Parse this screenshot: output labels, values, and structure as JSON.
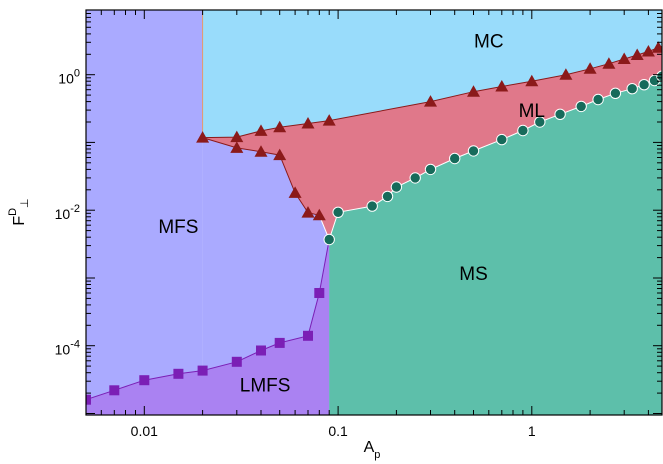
{
  "chart_data": {
    "type": "scatter",
    "title": "",
    "xlabel": {
      "main": "A",
      "sub": "p"
    },
    "ylabel": {
      "main": "F",
      "sup": "D",
      "sub": "⊥"
    },
    "x_scale": "log",
    "y_scale": "log",
    "xlim": [
      0.005,
      4.7
    ],
    "ylim": [
      9.5e-06,
      9.0
    ],
    "grid": false,
    "x_ticks": [
      {
        "value": 0.01,
        "label": "0.01"
      },
      {
        "value": 0.1,
        "label": "0.1"
      },
      {
        "value": 1,
        "label": "1"
      }
    ],
    "y_ticks": [
      {
        "value": 1,
        "base": "10",
        "exp": "0"
      },
      {
        "value": 0.01,
        "base": "10",
        "exp": "-2"
      },
      {
        "value": 0.0001,
        "base": "10",
        "exp": "-4"
      }
    ],
    "regions": [
      {
        "label": "MC",
        "color": "#99dcfb",
        "label_at": {
          "x": 0.6,
          "y": 3.0
        }
      },
      {
        "label": "ML",
        "color": "#e0788a",
        "label_at": {
          "x": 1.0,
          "y": 0.28
        }
      },
      {
        "label": "MFS",
        "color": "#aaaaff",
        "label_at": {
          "x": 0.015,
          "y": 0.0055
        }
      },
      {
        "label": "MS",
        "color": "#5dbfaa",
        "label_at": {
          "x": 0.5,
          "y": 0.0011
        }
      },
      {
        "label": "LMFS",
        "color": "#aa82f2",
        "label_at": {
          "x": 0.042,
          "y": 2.5e-05
        }
      }
    ],
    "series": [
      {
        "marker": "triangle",
        "color": "#8b1a1a",
        "points": [
          {
            "x": 0.02,
            "y": 0.118
          },
          {
            "x": 0.03,
            "y": 0.12
          },
          {
            "x": 0.04,
            "y": 0.148
          },
          {
            "x": 0.05,
            "y": 0.167
          },
          {
            "x": 0.07,
            "y": 0.19
          },
          {
            "x": 0.09,
            "y": 0.21
          },
          {
            "x": 0.3,
            "y": 0.4
          },
          {
            "x": 0.5,
            "y": 0.56
          },
          {
            "x": 0.7,
            "y": 0.67
          },
          {
            "x": 1.0,
            "y": 0.8
          },
          {
            "x": 1.5,
            "y": 1.0
          },
          {
            "x": 2.0,
            "y": 1.22
          },
          {
            "x": 2.5,
            "y": 1.45
          },
          {
            "x": 3.0,
            "y": 1.7
          },
          {
            "x": 3.5,
            "y": 1.95
          },
          {
            "x": 4.0,
            "y": 2.2
          },
          {
            "x": 4.5,
            "y": 2.5
          },
          {
            "x": 0.03,
            "y": 0.083
          },
          {
            "x": 0.04,
            "y": 0.073
          },
          {
            "x": 0.05,
            "y": 0.065
          },
          {
            "x": 0.06,
            "y": 0.018
          },
          {
            "x": 0.07,
            "y": 0.0092
          },
          {
            "x": 0.08,
            "y": 0.0084
          }
        ]
      },
      {
        "marker": "circle",
        "color": "#176b5b",
        "points": [
          {
            "x": 0.09,
            "y": 0.0037
          },
          {
            "x": 0.1,
            "y": 0.0093
          },
          {
            "x": 0.15,
            "y": 0.0115
          },
          {
            "x": 0.18,
            "y": 0.016
          },
          {
            "x": 0.2,
            "y": 0.022
          },
          {
            "x": 0.25,
            "y": 0.03
          },
          {
            "x": 0.3,
            "y": 0.04
          },
          {
            "x": 0.4,
            "y": 0.058
          },
          {
            "x": 0.5,
            "y": 0.075
          },
          {
            "x": 0.7,
            "y": 0.11
          },
          {
            "x": 0.9,
            "y": 0.15
          },
          {
            "x": 1.1,
            "y": 0.2
          },
          {
            "x": 1.4,
            "y": 0.26
          },
          {
            "x": 1.8,
            "y": 0.34
          },
          {
            "x": 2.2,
            "y": 0.43
          },
          {
            "x": 2.7,
            "y": 0.53
          },
          {
            "x": 3.3,
            "y": 0.62
          },
          {
            "x": 3.8,
            "y": 0.71
          },
          {
            "x": 4.3,
            "y": 0.82
          },
          {
            "x": 4.7,
            "y": 0.95
          }
        ]
      },
      {
        "marker": "square",
        "color": "#7b1fb5",
        "points": [
          {
            "x": 0.005,
            "y": 1.6e-05
          },
          {
            "x": 0.007,
            "y": 2.2e-05
          },
          {
            "x": 0.01,
            "y": 3.1e-05
          },
          {
            "x": 0.015,
            "y": 3.85e-05
          },
          {
            "x": 0.02,
            "y": 4.3e-05
          },
          {
            "x": 0.03,
            "y": 5.8e-05
          },
          {
            "x": 0.04,
            "y": 8.5e-05
          },
          {
            "x": 0.05,
            "y": 0.00011
          },
          {
            "x": 0.07,
            "y": 0.00014
          },
          {
            "x": 0.08,
            "y": 0.0006
          }
        ]
      }
    ]
  }
}
